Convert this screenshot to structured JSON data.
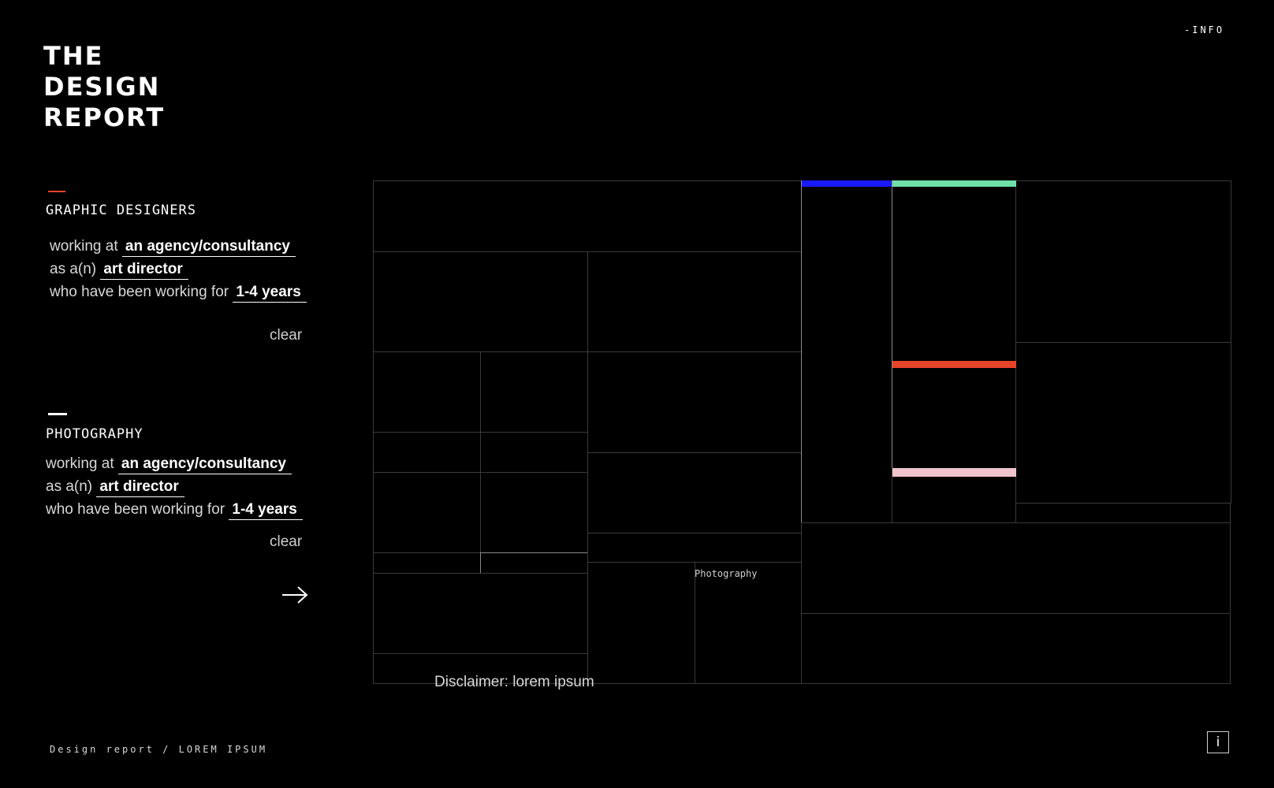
{
  "header": {
    "title_lines": [
      "THE",
      "DESIGN",
      "REPORT"
    ],
    "info_link": "-INFO"
  },
  "filters": {
    "graphic": {
      "label": "GRAPHIC DESIGNERS",
      "working_at_lead": "working at",
      "working_at_value": "an agency/consultancy",
      "role_lead": "as a(n)",
      "role_value": "art director",
      "years_lead": "who have been working for",
      "years_value": "1-4 years",
      "clear": "clear"
    },
    "photography": {
      "label": "PHOTOGRAPHY",
      "working_at_lead": "working at",
      "working_at_value": "an agency/consultancy",
      "role_lead": "as a(n)",
      "role_value": "art director",
      "years_lead": "who have been working for",
      "years_value": "1-4 years",
      "clear": "clear"
    },
    "next_arrow": "arrow-right-icon"
  },
  "treemap": {
    "cell_label": "Photography",
    "highlight_colors": {
      "blue": "#1a1aff",
      "green": "#6ee0a8",
      "red": "#e8442a",
      "pink": "#f0c4cc"
    }
  },
  "disclaimer": "Disclaimer: lorem ipsum",
  "footer": "Design report / LOREM IPSUM",
  "info_button": "i"
}
